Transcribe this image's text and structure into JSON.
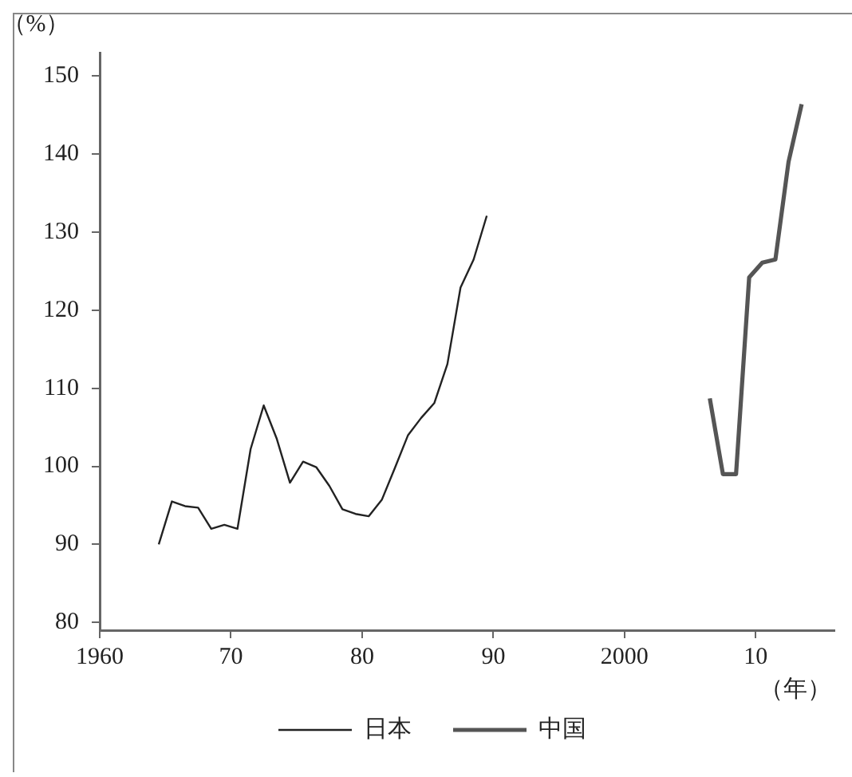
{
  "chart_data": {
    "type": "line",
    "ylabel": "（%）",
    "xlabel": "（年）",
    "xlim": [
      1960,
      2016
    ],
    "ylim": [
      79,
      153
    ],
    "xticks": [
      1960,
      {
        "value": 1970,
        "label": "70"
      },
      {
        "value": 1980,
        "label": "80"
      },
      {
        "value": 1990,
        "label": "90"
      },
      2000,
      {
        "value": 2010,
        "label": "10"
      }
    ],
    "yticks": [
      80,
      90,
      100,
      110,
      120,
      130,
      140,
      150
    ],
    "grid": false,
    "legend": "bottom",
    "marker": "none",
    "line_style": "solid",
    "series": [
      {
        "name": "日本",
        "color": "#222222",
        "x": [
          1964.5,
          1965.5,
          1966.5,
          1967.5,
          1968.5,
          1969.5,
          1970.5,
          1971.5,
          1972.5,
          1973.5,
          1974.5,
          1975.5,
          1976.5,
          1977.5,
          1978.5,
          1979.5,
          1980.5,
          1981.5,
          1982.5,
          1983.5,
          1984.5,
          1985.5,
          1986.5,
          1987.5,
          1988.5,
          1989.5
        ],
        "values": [
          90,
          95.5,
          94.9,
          94.7,
          92,
          92.5,
          92,
          102.2,
          107.8,
          103.5,
          97.9,
          100.6,
          99.9,
          97.5,
          94.5,
          93.9,
          93.6,
          95.7,
          99.8,
          104,
          106.2,
          108.1,
          113.1,
          122.9,
          126.5,
          132.1
        ]
      },
      {
        "name": "中国",
        "color": "#555555",
        "x": [
          2006.5,
          2007.5,
          2008.5,
          2009.5,
          2010.5,
          2011.5,
          2012.5,
          2013.5
        ],
        "values": [
          108.7,
          99,
          99,
          124.2,
          126.1,
          126.5,
          139,
          146.4
        ]
      }
    ]
  }
}
